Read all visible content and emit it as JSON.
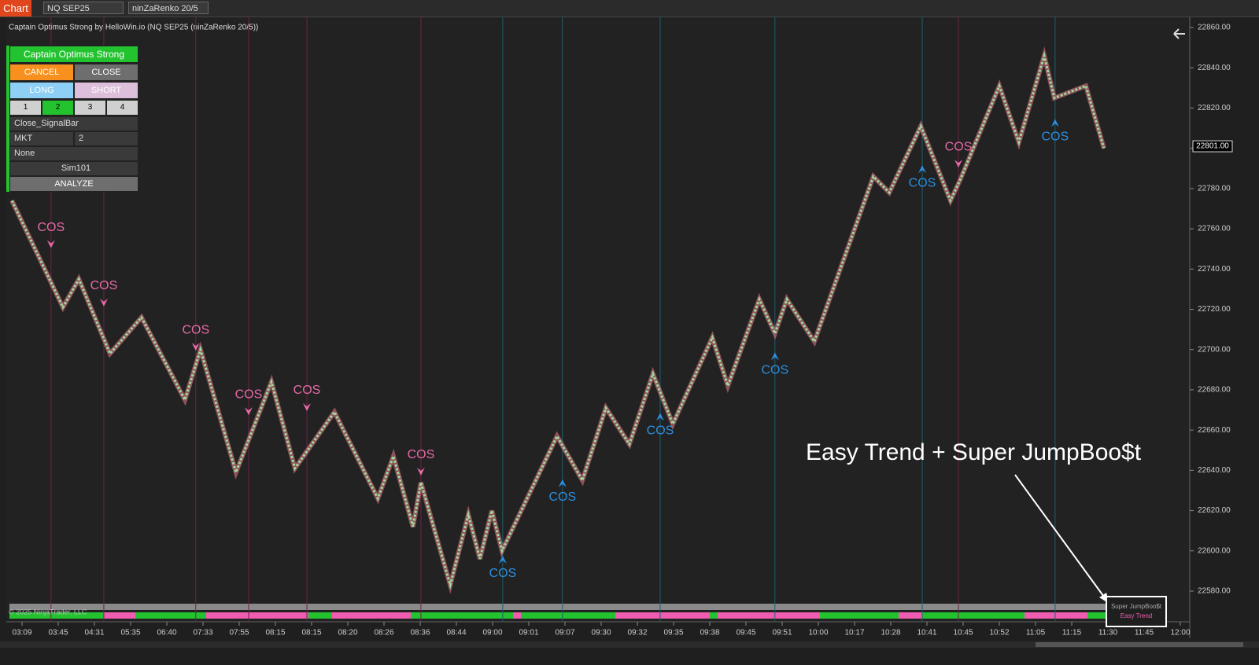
{
  "toolbar": {
    "tab": "Chart",
    "instrument": "NQ SEP25",
    "bar_type": "ninZaRenko 20/5"
  },
  "panel": {
    "title": "Captain Optimus Strong",
    "cancel": "CANCEL",
    "close": "CLOSE",
    "long": "LONG",
    "short": "SHORT",
    "quantities": [
      "1",
      "2",
      "3",
      "4"
    ],
    "exit_mode": "Close_SignalBar",
    "order_type": "MKT",
    "quantity": "2",
    "atm": "None",
    "account": "Sim101",
    "analyze": "ANALYZE"
  },
  "chart": {
    "title": "Captain Optimus Strong by HelloWin.io (NQ SEP25 (ninZaRenko 20/5))",
    "categories": [
      "03:09",
      "03:45",
      "04:31",
      "05:35",
      "06:40",
      "07:33",
      "07:55",
      "08:15",
      "08:15",
      "08:20",
      "08:26",
      "08:36",
      "08:44",
      "09:00",
      "09:01",
      "09:07",
      "09:30",
      "09:32",
      "09:35",
      "09:38",
      "09:45",
      "09:51",
      "10:00",
      "10:17",
      "10:28",
      "10:41",
      "10:45",
      "10:52",
      "11:05",
      "11:15",
      "11:30",
      "11:45",
      "12:00"
    ],
    "ylim": [
      22580,
      22860
    ],
    "yticks": [
      {
        "value": 22580,
        "label": "22580.00"
      },
      {
        "value": 22600,
        "label": "22600.00"
      },
      {
        "value": 22620,
        "label": "22620.00"
      },
      {
        "value": 22640,
        "label": "22640.00"
      },
      {
        "value": 22660,
        "label": "22660.00"
      },
      {
        "value": 22680,
        "label": "22680.00"
      },
      {
        "value": 22700,
        "label": "22700.00"
      },
      {
        "value": 22720,
        "label": "22720.00"
      },
      {
        "value": 22740,
        "label": "22740.00"
      },
      {
        "value": 22760,
        "label": "22760.00"
      },
      {
        "value": 22780,
        "label": "22780.00"
      },
      {
        "value": 22800,
        "label": "22800.00"
      },
      {
        "value": 22820,
        "label": "22820.00"
      },
      {
        "value": 22840,
        "label": "22840.00"
      },
      {
        "value": 22860,
        "label": "22860.00"
      }
    ],
    "last_price": {
      "value": 22801,
      "label": "22801.00"
    },
    "price": {
      "x": [
        -0.28,
        1.13,
        1.57,
        2.43,
        3.3,
        4.5,
        4.93,
        5.91,
        6.89,
        7.54,
        8.63,
        9.83,
        10.26,
        10.8,
        11.02,
        11.83,
        12.33,
        12.65,
        12.98,
        13.26,
        14.78,
        15.48,
        16.13,
        16.78,
        17.43,
        17.98,
        19.07,
        19.5,
        20.37,
        20.8,
        21.13,
        21.89,
        23.52,
        23.96,
        24.83,
        25.65,
        25.91,
        27,
        27.54,
        28.24,
        28.52,
        29.39,
        29.89
      ],
      "values": [
        22774,
        22721,
        22735,
        22698,
        22716,
        22675,
        22700,
        22639,
        22684,
        22641,
        22669,
        22626,
        22647,
        22612,
        22634,
        22583,
        22618,
        22596,
        22620,
        22600,
        22657,
        22635,
        22671,
        22653,
        22688,
        22663,
        22706,
        22682,
        22725,
        22708,
        22725,
        22704,
        22786,
        22778,
        22811,
        22774,
        22784,
        22831,
        22803,
        22846,
        22825,
        22831,
        22800
      ]
    },
    "signals": [
      {
        "label": "COS",
        "direction": "down",
        "x": 0.8,
        "price": 22752
      },
      {
        "label": "COS",
        "direction": "down",
        "x": 2.26,
        "price": 22723
      },
      {
        "label": "COS",
        "direction": "down",
        "x": 4.8,
        "price": 22701
      },
      {
        "label": "COS",
        "direction": "down",
        "x": 6.26,
        "price": 22669
      },
      {
        "label": "COS",
        "direction": "down",
        "x": 7.87,
        "price": 22671
      },
      {
        "label": "COS",
        "direction": "down",
        "x": 11.02,
        "price": 22639
      },
      {
        "label": "COS",
        "direction": "down",
        "x": 25.87,
        "price": 22792
      },
      {
        "label": "COS",
        "direction": "up",
        "x": 13.28,
        "price": 22596
      },
      {
        "label": "COS",
        "direction": "up",
        "x": 14.93,
        "price": 22634
      },
      {
        "label": "COS",
        "direction": "up",
        "x": 17.63,
        "price": 22667
      },
      {
        "label": "COS",
        "direction": "up",
        "x": 20.8,
        "price": 22697
      },
      {
        "label": "COS",
        "direction": "up",
        "x": 24.87,
        "price": 22790
      },
      {
        "label": "COS",
        "direction": "up",
        "x": 28.54,
        "price": 22813
      }
    ],
    "annotation": "Easy Trend + Super JumpBoo$t",
    "indicator_box": [
      "Super JumpBoo$t",
      "Easy Trend"
    ],
    "copyright": "© 2025 NinjaTrader, LLC"
  }
}
